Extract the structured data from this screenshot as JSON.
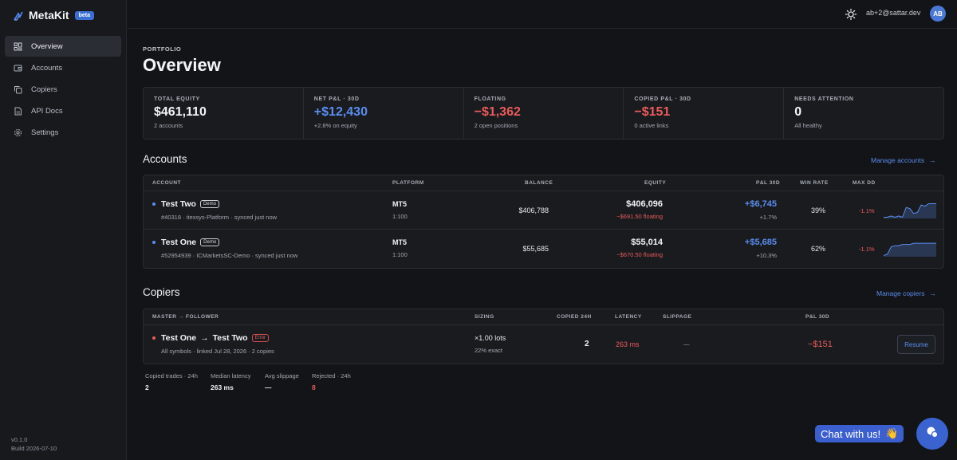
{
  "brand": {
    "name": "MetaKit",
    "badge": "beta"
  },
  "sidebar": {
    "items": [
      {
        "label": "Overview",
        "icon": "grid-icon",
        "active": true
      },
      {
        "label": "Accounts",
        "icon": "wallet-icon"
      },
      {
        "label": "Copiers",
        "icon": "copy-icon"
      },
      {
        "label": "API Docs",
        "icon": "document-icon"
      },
      {
        "label": "Settings",
        "icon": "gear-icon"
      }
    ],
    "version": "v0.1.0",
    "build": "Build 2026-07-10"
  },
  "topbar": {
    "email": "ab+2@sattar.dev",
    "avatar": "AB"
  },
  "header": {
    "eyebrow": "PORTFOLIO",
    "title": "Overview"
  },
  "stats": [
    {
      "label": "TOTAL EQUITY",
      "value": "$461,110",
      "sub": "2 accounts",
      "tone": "neutral"
    },
    {
      "label": "NET P&L · 30D",
      "value": "+$12,430",
      "sub": "+2.8% on equity",
      "tone": "positive"
    },
    {
      "label": "FLOATING",
      "value": "−$1,362",
      "sub": "2 open positions",
      "tone": "negative"
    },
    {
      "label": "COPIED P&L · 30D",
      "value": "−$151",
      "sub": "0 active links",
      "tone": "negative"
    },
    {
      "label": "NEEDS ATTENTION",
      "value": "0",
      "sub": "All healthy",
      "tone": "neutral"
    }
  ],
  "accounts": {
    "title": "Accounts",
    "link": "Manage accounts",
    "columns": {
      "account": "ACCOUNT",
      "platform": "PLATFORM",
      "balance": "BALANCE",
      "equity": "EQUITY",
      "pnl": "P&L 30D",
      "winrate": "WIN RATE",
      "maxdd": "MAX DD"
    },
    "rows": [
      {
        "name": "Test Two",
        "tag": "Demo",
        "meta": "#40318 · itexsys-Platform · synced just now",
        "platform": "MT5",
        "leverage": "1:100",
        "balance": "$406,788",
        "equity": "$406,096",
        "floating": "−$691.50 floating",
        "pnl": "+$6,745",
        "pnl_pct": "+1.7%",
        "winrate": "39%",
        "maxdd": "-1.1%",
        "spark": [
          12,
          12,
          11,
          12,
          11,
          12,
          4,
          5,
          9,
          8,
          2,
          3,
          1,
          1,
          1
        ]
      },
      {
        "name": "Test One",
        "tag": "Demo",
        "meta": "#52954939 · ICMarketsSC-Demo · synced just now",
        "platform": "MT5",
        "leverage": "1:100",
        "balance": "$55,685",
        "equity": "$55,014",
        "floating": "−$670.50 floating",
        "pnl": "+$5,685",
        "pnl_pct": "+10.3%",
        "winrate": "62%",
        "maxdd": "-1.1%",
        "spark": [
          12,
          11,
          5,
          4,
          4,
          3,
          3,
          3,
          2,
          2,
          2,
          2,
          2,
          2,
          2
        ]
      }
    ]
  },
  "copiers": {
    "title": "Copiers",
    "link": "Manage copiers",
    "columns": {
      "pair": "MASTER → FOLLOWER",
      "sizing": "SIZING",
      "copied": "COPIED 24H",
      "latency": "LATENCY",
      "slippage": "SLIPPAGE",
      "pnl": "P&L 30D"
    },
    "rows": [
      {
        "master": "Test One",
        "arrow": "→",
        "follower": "Test Two",
        "tag": "Error",
        "meta": "All symbols · linked Jul 28, 2026 · 2 copies",
        "sizing": "×1.00 lots",
        "sizing_sub": "22% exact",
        "copied": "2",
        "latency": "263 ms",
        "slippage": "—",
        "pnl": "−$151",
        "action": "Resume"
      }
    ]
  },
  "footer_stats": [
    {
      "label": "Copied trades · 24h",
      "value": "2"
    },
    {
      "label": "Median latency",
      "value": "263 ms"
    },
    {
      "label": "Avg slippage",
      "value": "—"
    },
    {
      "label": "Rejected · 24h",
      "value": "8",
      "tone": "negative"
    }
  ],
  "chat": {
    "label": "Chat with us!",
    "emoji": "👋"
  },
  "colors": {
    "accent": "#5b8def",
    "negative": "#ea5b5b",
    "background": "#121417"
  }
}
